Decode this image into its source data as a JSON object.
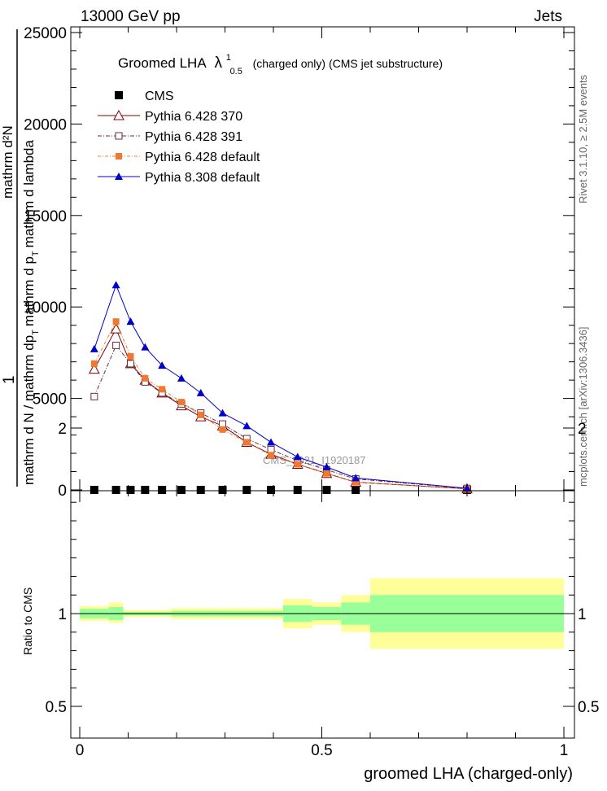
{
  "header": {
    "left": "13000 GeV pp",
    "right": "Jets"
  },
  "side": {
    "rivet": "Rivet 3.1.10, ≥ 2.5M events",
    "mcplots": "mcplots.cern.ch [arXiv:1306.3436]"
  },
  "watermark": "CMS_2021_I1920187",
  "colors": {
    "cms": "#000000",
    "p370": "#800000",
    "p391": "#6b2b3a",
    "p6def": "#f07830",
    "p8def": "#0000cc",
    "band_outer": "#ffff99",
    "band_inner": "#99ff99"
  },
  "chart_data": [
    {
      "type": "line",
      "title_main": "Groomed LHA",
      "title_lambda": "λ",
      "title_sup": "1",
      "title_sub": "0.5",
      "title_rest": "(charged only) (CMS jet substructure)",
      "ylabel": "1 / mathrm d N / mathrm dp_T mathrm d p_T mathrm d lambda mathrm d^2N",
      "ylabel_parts": {
        "one": "1",
        "denominator": "mathrm d N / mathrm dp",
        "subscript_t": "T",
        "numerator_line": "mathrm d p",
        "numerator_t": "T",
        "numerator_rest": "mathrm d lambda",
        "numerator_d2n": "mathrm d²N",
        "numerator_t2": "T",
        "numerator_d": "mathrm d"
      },
      "xlim": [
        0,
        1
      ],
      "ylim": [
        0,
        25000
      ],
      "yticks": [
        0,
        5000,
        10000,
        15000,
        20000,
        25000
      ],
      "ytick_labels": [
        "0",
        "5000",
        "10000",
        "15000",
        "20000",
        "25000"
      ],
      "legend_placement": "top-left",
      "x": [
        0.03,
        0.075,
        0.105,
        0.135,
        0.17,
        0.21,
        0.25,
        0.295,
        0.345,
        0.395,
        0.45,
        0.51,
        0.57,
        0.8
      ],
      "series": [
        {
          "name": "CMS",
          "marker": "square",
          "values": [
            0,
            0,
            0,
            0,
            0,
            0,
            0,
            0,
            0,
            0,
            0,
            0,
            0,
            0
          ]
        },
        {
          "name": "Pythia 6.428 370",
          "marker": "triangle-open",
          "values": [
            6600,
            8800,
            6900,
            6000,
            5300,
            4600,
            4000,
            3500,
            2600,
            1950,
            1400,
            900,
            420,
            60
          ]
        },
        {
          "name": "Pythia 6.428 391",
          "marker": "square-open",
          "values": [
            5100,
            7900,
            6900,
            5900,
            5300,
            4700,
            4200,
            3600,
            2800,
            2200,
            1600,
            1100,
            600,
            80
          ]
        },
        {
          "name": "Pythia 6.428 default",
          "marker": "square-filled",
          "values": [
            6900,
            9200,
            7300,
            6100,
            5500,
            4800,
            4100,
            3300,
            2600,
            1900,
            1400,
            900,
            420,
            60
          ]
        },
        {
          "name": "Pythia 8.308 default",
          "marker": "triangle-filled",
          "values": [
            7700,
            11200,
            9200,
            7800,
            6800,
            6100,
            5300,
            4200,
            3500,
            2600,
            1800,
            1250,
            650,
            90
          ]
        }
      ]
    },
    {
      "type": "area",
      "ylabel": "Ratio to CMS",
      "xlabel": "groomed LHA (charged-only)",
      "xlim": [
        0,
        1
      ],
      "ylim": [
        0.33,
        2.3
      ],
      "xticks": [
        0,
        0.5,
        1
      ],
      "xtick_labels": [
        "0",
        "0.5",
        "1"
      ],
      "yticks": [
        0.5,
        1,
        2
      ],
      "ytick_labels": [
        "0.5",
        "1",
        "2"
      ],
      "bins": [
        0,
        0.06,
        0.09,
        0.12,
        0.15,
        0.19,
        0.23,
        0.27,
        0.32,
        0.37,
        0.42,
        0.48,
        0.54,
        0.6,
        1.0
      ],
      "band_outer": [
        [
          0.96,
          1.04
        ],
        [
          0.95,
          1.06
        ],
        [
          0.98,
          1.02
        ],
        [
          0.98,
          1.02
        ],
        [
          0.98,
          1.02
        ],
        [
          0.97,
          1.03
        ],
        [
          0.97,
          1.03
        ],
        [
          0.97,
          1.03
        ],
        [
          0.97,
          1.03
        ],
        [
          0.97,
          1.03
        ],
        [
          0.92,
          1.08
        ],
        [
          0.94,
          1.06
        ],
        [
          0.9,
          1.1
        ],
        [
          0.81,
          1.19
        ]
      ],
      "band_inner": [
        [
          0.975,
          1.025
        ],
        [
          0.965,
          1.035
        ],
        [
          0.99,
          1.01
        ],
        [
          0.99,
          1.01
        ],
        [
          0.99,
          1.01
        ],
        [
          0.985,
          1.015
        ],
        [
          0.985,
          1.015
        ],
        [
          0.985,
          1.015
        ],
        [
          0.985,
          1.015
        ],
        [
          0.985,
          1.015
        ],
        [
          0.955,
          1.045
        ],
        [
          0.965,
          1.035
        ],
        [
          0.94,
          1.06
        ],
        [
          0.9,
          1.1
        ]
      ]
    }
  ]
}
